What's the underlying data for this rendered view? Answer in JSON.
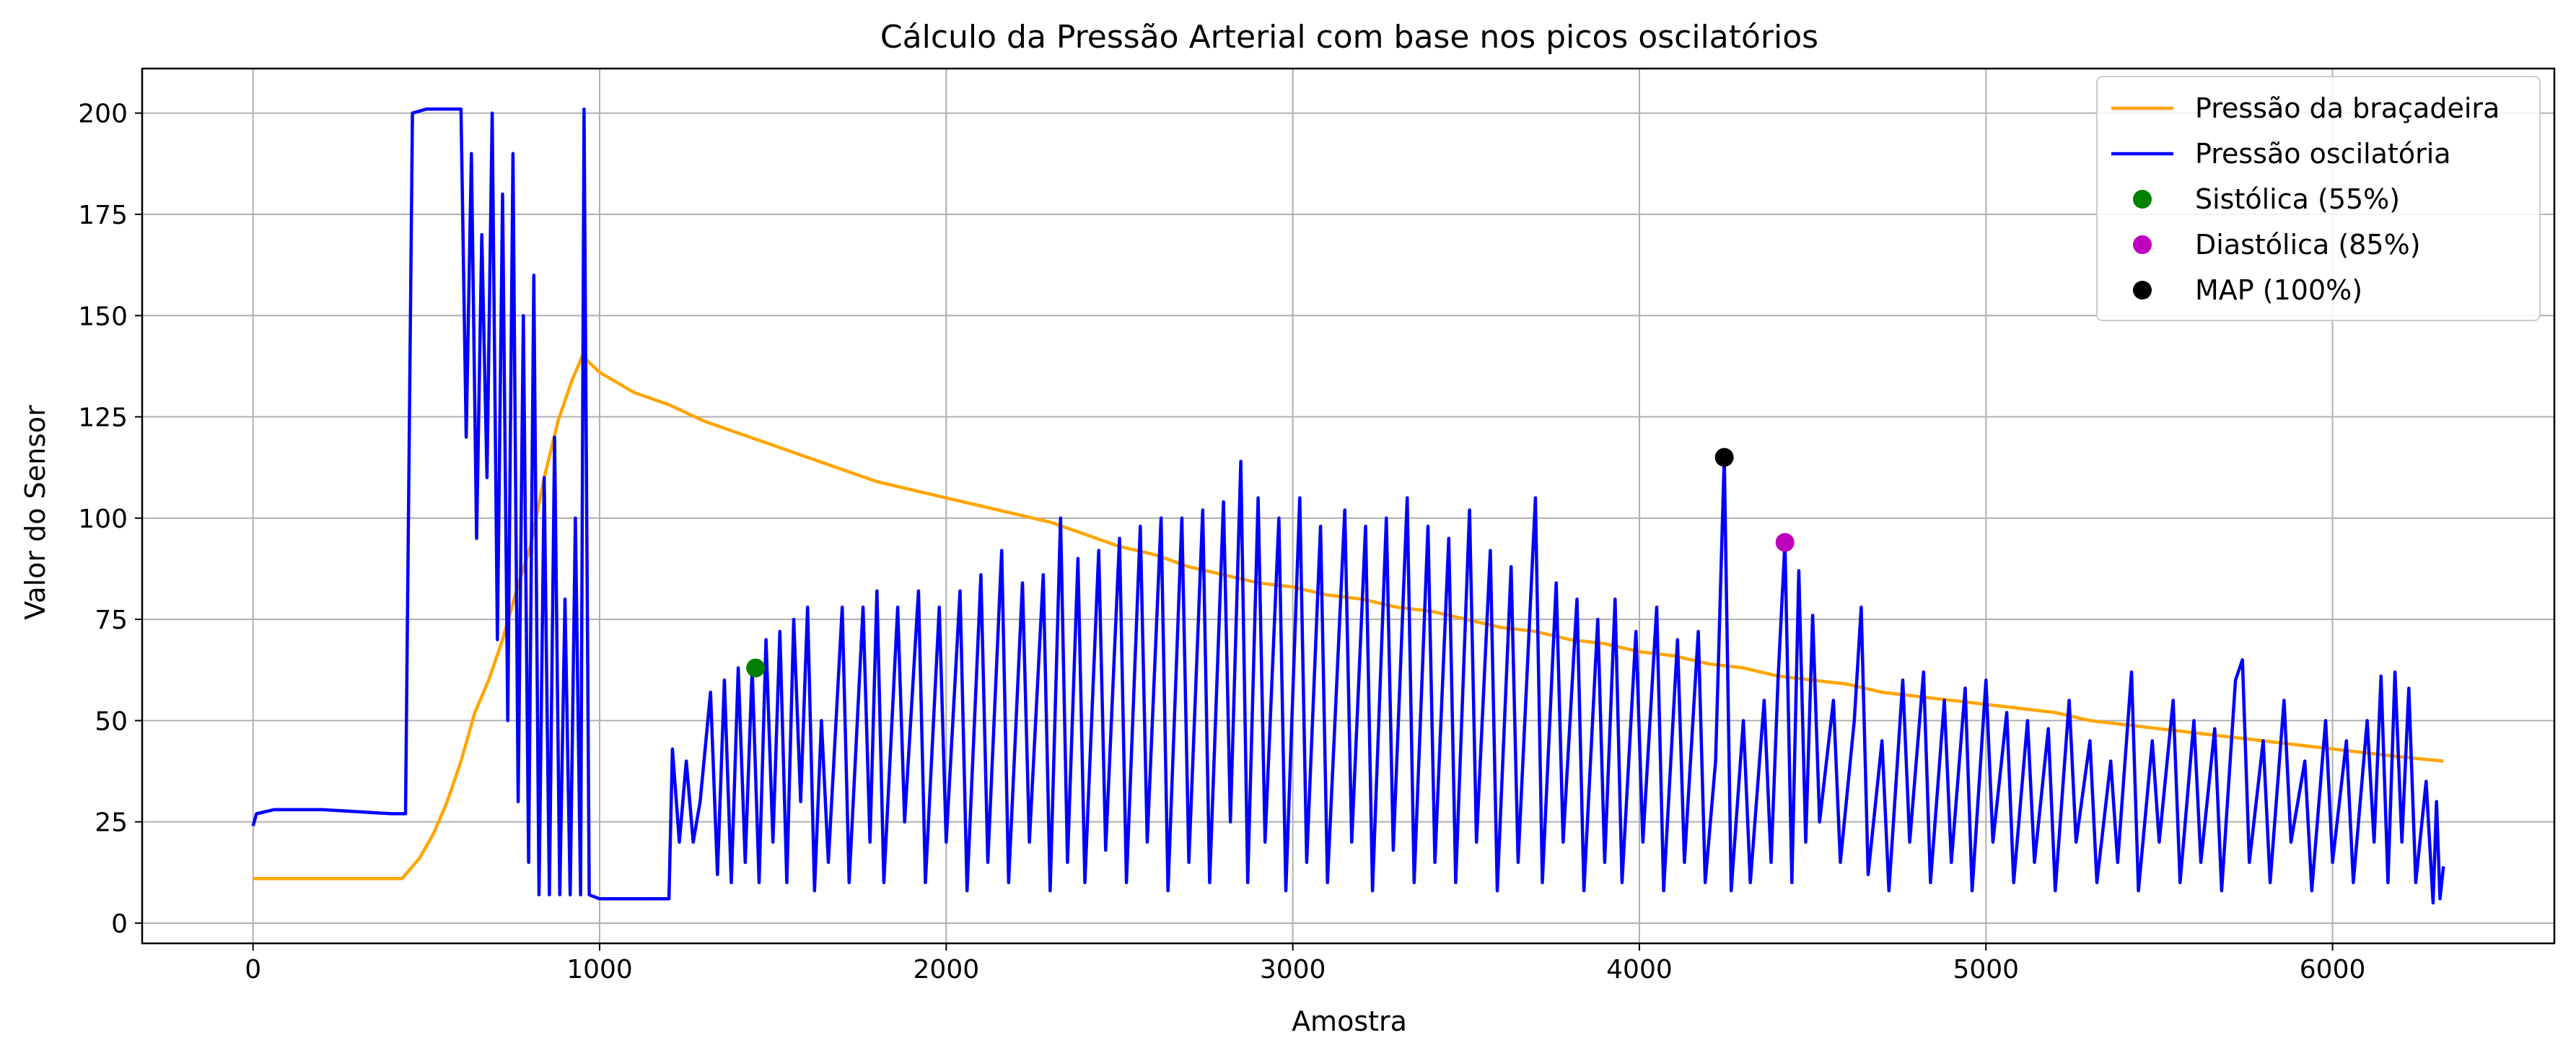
{
  "chart_data": {
    "type": "line",
    "title": "Cálculo da Pressão Arterial com base nos picos oscilatórios",
    "xlabel": "Amostra",
    "ylabel": "Valor do Sensor",
    "xlim": [
      -320,
      6640
    ],
    "ylim": [
      -5,
      211
    ],
    "x_ticks": [
      0,
      1000,
      2000,
      3000,
      4000,
      5000,
      6000
    ],
    "y_ticks": [
      0,
      25,
      50,
      75,
      100,
      125,
      150,
      175,
      200
    ],
    "x_tick_labels": [
      "0",
      "1000",
      "2000",
      "3000",
      "4000",
      "5000",
      "6000"
    ],
    "y_tick_labels": [
      "0",
      "25",
      "50",
      "75",
      "100",
      "125",
      "150",
      "175",
      "200"
    ],
    "grid": true,
    "legend_position": "top-right",
    "series": [
      {
        "name": "Pressão da braçadeira",
        "kind": "line",
        "color": "#FFA500",
        "points": [
          [
            0,
            11
          ],
          [
            200,
            11
          ],
          [
            430,
            11
          ],
          [
            480,
            16
          ],
          [
            520,
            22
          ],
          [
            560,
            30
          ],
          [
            600,
            40
          ],
          [
            640,
            52
          ],
          [
            680,
            60
          ],
          [
            720,
            70
          ],
          [
            760,
            82
          ],
          [
            800,
            93
          ],
          [
            840,
            110
          ],
          [
            880,
            124
          ],
          [
            920,
            134
          ],
          [
            950,
            140
          ],
          [
            1000,
            136
          ],
          [
            1100,
            131
          ],
          [
            1200,
            128
          ],
          [
            1300,
            124
          ],
          [
            1400,
            121
          ],
          [
            1500,
            118
          ],
          [
            1600,
            115
          ],
          [
            1700,
            112
          ],
          [
            1800,
            109
          ],
          [
            1900,
            107
          ],
          [
            2000,
            105
          ],
          [
            2100,
            103
          ],
          [
            2200,
            101
          ],
          [
            2300,
            99
          ],
          [
            2400,
            96
          ],
          [
            2500,
            93
          ],
          [
            2600,
            91
          ],
          [
            2700,
            88
          ],
          [
            2800,
            86
          ],
          [
            2900,
            84
          ],
          [
            3000,
            83
          ],
          [
            3100,
            81
          ],
          [
            3200,
            80
          ],
          [
            3300,
            78
          ],
          [
            3400,
            77
          ],
          [
            3500,
            75
          ],
          [
            3600,
            73
          ],
          [
            3700,
            72
          ],
          [
            3800,
            70
          ],
          [
            3900,
            69
          ],
          [
            4000,
            67
          ],
          [
            4100,
            66
          ],
          [
            4200,
            64
          ],
          [
            4300,
            63
          ],
          [
            4400,
            61
          ],
          [
            4500,
            60
          ],
          [
            4600,
            59
          ],
          [
            4700,
            57
          ],
          [
            4800,
            56
          ],
          [
            4900,
            55
          ],
          [
            5000,
            54
          ],
          [
            5100,
            53
          ],
          [
            5200,
            52
          ],
          [
            5300,
            50
          ],
          [
            5400,
            49
          ],
          [
            5500,
            48
          ],
          [
            5600,
            47
          ],
          [
            5700,
            46
          ],
          [
            5800,
            45
          ],
          [
            5900,
            44
          ],
          [
            6000,
            43
          ],
          [
            6100,
            42
          ],
          [
            6200,
            41
          ],
          [
            6320,
            40
          ]
        ]
      },
      {
        "name": "Pressão oscilatória",
        "kind": "line",
        "color": "#0000FF",
        "points": [
          [
            0,
            24
          ],
          [
            10,
            27
          ],
          [
            60,
            28
          ],
          [
            200,
            28
          ],
          [
            400,
            27
          ],
          [
            440,
            27
          ],
          [
            460,
            200
          ],
          [
            500,
            201
          ],
          [
            600,
            201
          ],
          [
            615,
            120
          ],
          [
            630,
            190
          ],
          [
            645,
            95
          ],
          [
            660,
            170
          ],
          [
            675,
            110
          ],
          [
            690,
            200
          ],
          [
            705,
            70
          ],
          [
            720,
            180
          ],
          [
            735,
            50
          ],
          [
            750,
            190
          ],
          [
            765,
            30
          ],
          [
            780,
            150
          ],
          [
            795,
            15
          ],
          [
            810,
            160
          ],
          [
            825,
            7
          ],
          [
            840,
            110
          ],
          [
            855,
            7
          ],
          [
            870,
            120
          ],
          [
            885,
            7
          ],
          [
            900,
            80
          ],
          [
            915,
            7
          ],
          [
            930,
            100
          ],
          [
            945,
            7
          ],
          [
            955,
            201
          ],
          [
            970,
            7
          ],
          [
            1000,
            6
          ],
          [
            1200,
            6
          ],
          [
            1210,
            43
          ],
          [
            1230,
            20
          ],
          [
            1250,
            40
          ],
          [
            1270,
            20
          ],
          [
            1290,
            30
          ],
          [
            1320,
            57
          ],
          [
            1340,
            12
          ],
          [
            1360,
            60
          ],
          [
            1380,
            10
          ],
          [
            1400,
            63
          ],
          [
            1420,
            15
          ],
          [
            1440,
            63
          ],
          [
            1460,
            10
          ],
          [
            1480,
            70
          ],
          [
            1500,
            20
          ],
          [
            1520,
            72
          ],
          [
            1540,
            10
          ],
          [
            1560,
            75
          ],
          [
            1580,
            30
          ],
          [
            1600,
            78
          ],
          [
            1620,
            8
          ],
          [
            1640,
            50
          ],
          [
            1660,
            15
          ],
          [
            1700,
            78
          ],
          [
            1720,
            10
          ],
          [
            1760,
            78
          ],
          [
            1780,
            20
          ],
          [
            1800,
            82
          ],
          [
            1820,
            10
          ],
          [
            1860,
            78
          ],
          [
            1880,
            25
          ],
          [
            1920,
            82
          ],
          [
            1940,
            10
          ],
          [
            1980,
            78
          ],
          [
            2000,
            20
          ],
          [
            2040,
            82
          ],
          [
            2060,
            8
          ],
          [
            2100,
            86
          ],
          [
            2120,
            15
          ],
          [
            2160,
            92
          ],
          [
            2180,
            10
          ],
          [
            2220,
            84
          ],
          [
            2240,
            20
          ],
          [
            2280,
            86
          ],
          [
            2300,
            8
          ],
          [
            2330,
            100
          ],
          [
            2350,
            15
          ],
          [
            2380,
            90
          ],
          [
            2400,
            10
          ],
          [
            2440,
            92
          ],
          [
            2460,
            18
          ],
          [
            2500,
            95
          ],
          [
            2520,
            10
          ],
          [
            2560,
            98
          ],
          [
            2580,
            20
          ],
          [
            2620,
            100
          ],
          [
            2640,
            8
          ],
          [
            2680,
            100
          ],
          [
            2700,
            15
          ],
          [
            2740,
            102
          ],
          [
            2760,
            10
          ],
          [
            2800,
            104
          ],
          [
            2820,
            25
          ],
          [
            2850,
            114
          ],
          [
            2870,
            10
          ],
          [
            2900,
            105
          ],
          [
            2920,
            20
          ],
          [
            2960,
            100
          ],
          [
            2980,
            8
          ],
          [
            3020,
            105
          ],
          [
            3040,
            15
          ],
          [
            3080,
            98
          ],
          [
            3100,
            10
          ],
          [
            3150,
            102
          ],
          [
            3170,
            20
          ],
          [
            3210,
            98
          ],
          [
            3230,
            8
          ],
          [
            3270,
            100
          ],
          [
            3290,
            18
          ],
          [
            3330,
            105
          ],
          [
            3350,
            10
          ],
          [
            3390,
            98
          ],
          [
            3410,
            15
          ],
          [
            3450,
            95
          ],
          [
            3470,
            10
          ],
          [
            3510,
            102
          ],
          [
            3530,
            20
          ],
          [
            3570,
            92
          ],
          [
            3590,
            8
          ],
          [
            3630,
            88
          ],
          [
            3650,
            15
          ],
          [
            3700,
            105
          ],
          [
            3720,
            10
          ],
          [
            3760,
            84
          ],
          [
            3780,
            20
          ],
          [
            3820,
            80
          ],
          [
            3840,
            8
          ],
          [
            3880,
            75
          ],
          [
            3900,
            15
          ],
          [
            3930,
            80
          ],
          [
            3950,
            10
          ],
          [
            3990,
            72
          ],
          [
            4010,
            20
          ],
          [
            4050,
            78
          ],
          [
            4070,
            8
          ],
          [
            4110,
            70
          ],
          [
            4130,
            15
          ],
          [
            4170,
            72
          ],
          [
            4190,
            10
          ],
          [
            4220,
            40
          ],
          [
            4245,
            115
          ],
          [
            4265,
            8
          ],
          [
            4300,
            50
          ],
          [
            4320,
            10
          ],
          [
            4360,
            55
          ],
          [
            4380,
            15
          ],
          [
            4400,
            60
          ],
          [
            4420,
            94
          ],
          [
            4440,
            10
          ],
          [
            4460,
            87
          ],
          [
            4480,
            20
          ],
          [
            4500,
            76
          ],
          [
            4520,
            25
          ],
          [
            4560,
            55
          ],
          [
            4580,
            15
          ],
          [
            4620,
            50
          ],
          [
            4640,
            78
          ],
          [
            4660,
            12
          ],
          [
            4700,
            45
          ],
          [
            4720,
            8
          ],
          [
            4760,
            60
          ],
          [
            4780,
            20
          ],
          [
            4820,
            62
          ],
          [
            4840,
            10
          ],
          [
            4880,
            55
          ],
          [
            4900,
            15
          ],
          [
            4940,
            58
          ],
          [
            4960,
            8
          ],
          [
            5000,
            60
          ],
          [
            5020,
            20
          ],
          [
            5060,
            52
          ],
          [
            5080,
            10
          ],
          [
            5120,
            50
          ],
          [
            5140,
            15
          ],
          [
            5180,
            48
          ],
          [
            5200,
            8
          ],
          [
            5240,
            55
          ],
          [
            5260,
            20
          ],
          [
            5300,
            45
          ],
          [
            5320,
            10
          ],
          [
            5360,
            40
          ],
          [
            5380,
            15
          ],
          [
            5420,
            62
          ],
          [
            5440,
            8
          ],
          [
            5480,
            45
          ],
          [
            5500,
            20
          ],
          [
            5540,
            55
          ],
          [
            5560,
            10
          ],
          [
            5600,
            50
          ],
          [
            5620,
            15
          ],
          [
            5660,
            48
          ],
          [
            5680,
            8
          ],
          [
            5720,
            60
          ],
          [
            5740,
            65
          ],
          [
            5760,
            15
          ],
          [
            5800,
            45
          ],
          [
            5820,
            10
          ],
          [
            5860,
            55
          ],
          [
            5880,
            20
          ],
          [
            5920,
            40
          ],
          [
            5940,
            8
          ],
          [
            5980,
            50
          ],
          [
            6000,
            15
          ],
          [
            6040,
            45
          ],
          [
            6060,
            10
          ],
          [
            6100,
            50
          ],
          [
            6120,
            20
          ],
          [
            6140,
            61
          ],
          [
            6160,
            10
          ],
          [
            6180,
            62
          ],
          [
            6200,
            20
          ],
          [
            6220,
            58
          ],
          [
            6240,
            10
          ],
          [
            6270,
            35
          ],
          [
            6290,
            5
          ],
          [
            6300,
            30
          ],
          [
            6310,
            6
          ],
          [
            6320,
            14
          ]
        ]
      },
      {
        "name": "Sistólica (55%)",
        "kind": "marker",
        "color": "#008000",
        "points": [
          [
            1450,
            63
          ]
        ]
      },
      {
        "name": "Diastólica (85%)",
        "kind": "marker",
        "color": "#BF00BF",
        "points": [
          [
            4420,
            94
          ]
        ]
      },
      {
        "name": "MAP (100%)",
        "kind": "marker",
        "color": "#000000",
        "points": [
          [
            4245,
            115
          ]
        ]
      }
    ]
  }
}
